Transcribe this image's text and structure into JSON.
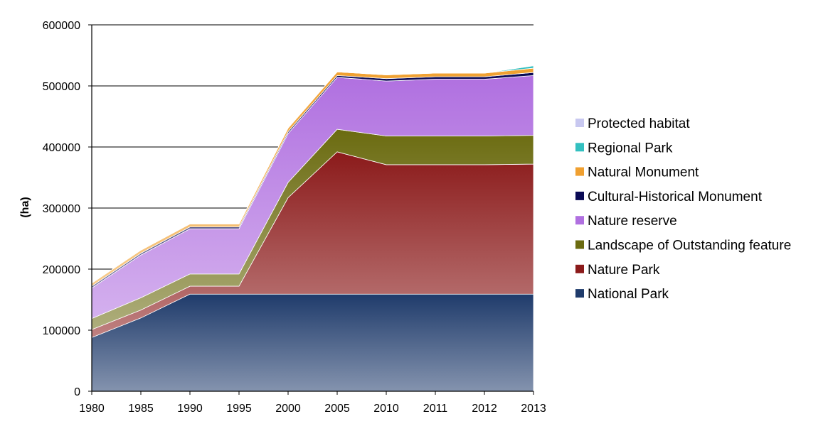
{
  "chart_data": {
    "type": "area",
    "stacked": true,
    "x": [
      "1980",
      "1985",
      "1990",
      "1995",
      "2000",
      "2005",
      "2010",
      "2011",
      "2012",
      "2013"
    ],
    "ylabel": "(ha)",
    "ylim": [
      0,
      600000
    ],
    "yticks": [
      0,
      100000,
      200000,
      300000,
      400000,
      500000,
      600000
    ],
    "ytick_labels": [
      "0",
      "100000",
      "200000",
      "300000",
      "400000",
      "500000",
      "600000"
    ],
    "grid": "horizontal",
    "legend_position": "right",
    "series": [
      {
        "name": "National Park",
        "color": "#1f3b6b",
        "values": [
          88000,
          120000,
          159000,
          159000,
          159000,
          159000,
          159000,
          159000,
          159000,
          159000
        ]
      },
      {
        "name": "Nature Park",
        "color": "#8b1a1a",
        "values": [
          13000,
          13000,
          13000,
          13000,
          158000,
          233000,
          212000,
          212000,
          212000,
          213000
        ]
      },
      {
        "name": "Landscape of Outstanding feature",
        "color": "#6b6b10",
        "values": [
          18000,
          20000,
          20000,
          20000,
          25000,
          37000,
          47000,
          47000,
          47000,
          47000
        ]
      },
      {
        "name": "Nature reserve",
        "color": "#b070e0",
        "values": [
          50000,
          70000,
          74000,
          74000,
          80000,
          85000,
          90000,
          93000,
          93000,
          98000
        ]
      },
      {
        "name": "Cultural-Historical Monument",
        "color": "#0a0a55",
        "values": [
          3000,
          3000,
          3000,
          3000,
          3000,
          3000,
          4000,
          4000,
          4000,
          5000
        ]
      },
      {
        "name": "Natural Monument",
        "color": "#f0a030",
        "values": [
          5000,
          5000,
          5000,
          5000,
          6000,
          6000,
          6000,
          6000,
          6000,
          7000
        ]
      },
      {
        "name": "Regional Park",
        "color": "#33c0c0",
        "values": [
          0,
          0,
          0,
          0,
          0,
          0,
          0,
          0,
          0,
          4000
        ]
      },
      {
        "name": "Protected habitat",
        "color": "#c8c8f0",
        "values": [
          0,
          0,
          0,
          0,
          0,
          0,
          0,
          0,
          0,
          1000
        ]
      }
    ]
  }
}
